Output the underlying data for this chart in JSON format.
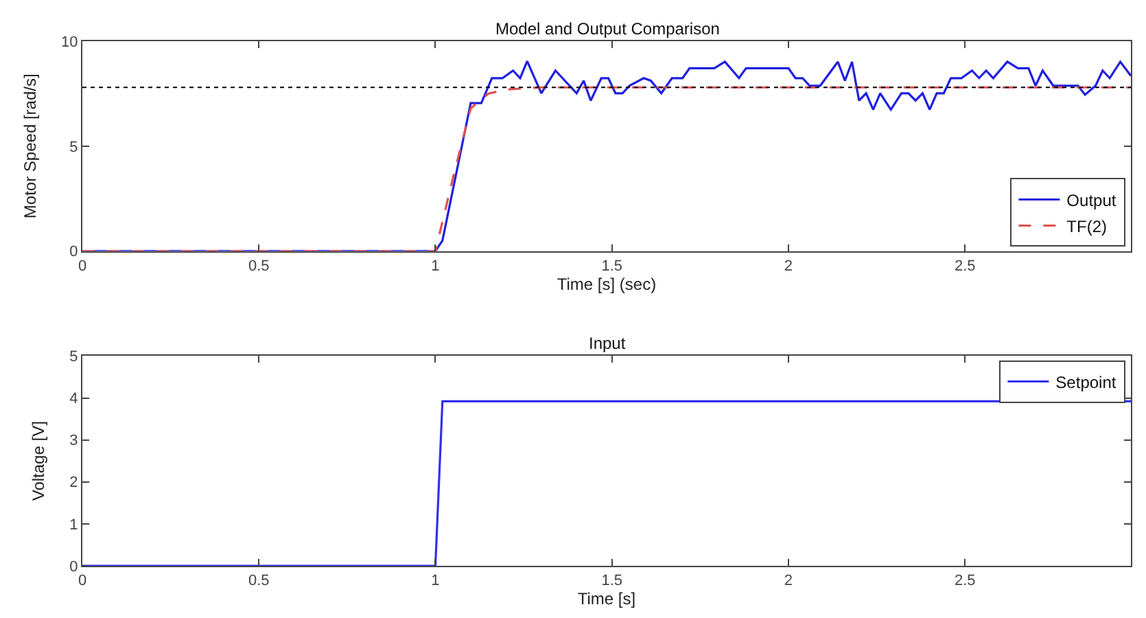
{
  "chart_data": [
    {
      "type": "line",
      "title": "Model and Output Comparison",
      "xlabel": "Time [s] (sec)",
      "ylabel": "Motor Speed [rad/s]",
      "xlim": [
        0,
        2.97
      ],
      "xticks": [
        0,
        0.5,
        1,
        1.5,
        2,
        2.5
      ],
      "ylim": [
        0,
        10
      ],
      "yticks": [
        0,
        5,
        10
      ],
      "legend": "bottom right",
      "ref_lines": [
        {
          "axis": "y",
          "value": 7.8,
          "color": "#000000",
          "line_style": "dotted"
        }
      ],
      "series": [
        {
          "name": "Output",
          "color": "#2020e0",
          "line_style": "solid",
          "x": [
            0,
            1.0,
            1.02,
            1.1,
            1.13,
            1.16,
            1.19,
            1.22,
            1.24,
            1.26,
            1.3,
            1.34,
            1.4,
            1.42,
            1.44,
            1.47,
            1.49,
            1.51,
            1.53,
            1.55,
            1.59,
            1.61,
            1.64,
            1.67,
            1.7,
            1.72,
            1.79,
            1.82,
            1.86,
            1.88,
            2.0,
            2.02,
            2.04,
            2.06,
            2.09,
            2.14,
            2.16,
            2.18,
            2.2,
            2.22,
            2.24,
            2.26,
            2.29,
            2.32,
            2.34,
            2.36,
            2.38,
            2.4,
            2.42,
            2.44,
            2.46,
            2.49,
            2.52,
            2.54,
            2.56,
            2.58,
            2.62,
            2.65,
            2.68,
            2.7,
            2.72,
            2.75,
            2.82,
            2.84,
            2.87,
            2.89,
            2.91,
            2.94,
            2.97
          ],
          "values": [
            0,
            0,
            0.5,
            7.05,
            7.05,
            8.24,
            8.24,
            8.6,
            8.24,
            9.05,
            7.52,
            8.6,
            7.52,
            8.12,
            7.17,
            8.24,
            8.24,
            7.52,
            7.52,
            7.88,
            8.24,
            8.12,
            7.52,
            8.24,
            8.24,
            8.71,
            8.71,
            9.02,
            8.24,
            8.71,
            8.71,
            8.24,
            8.24,
            7.88,
            7.88,
            9.02,
            8.12,
            9.02,
            7.17,
            7.52,
            6.74,
            7.52,
            6.74,
            7.52,
            7.52,
            7.17,
            7.52,
            6.74,
            7.52,
            7.52,
            8.24,
            8.24,
            8.6,
            8.24,
            8.6,
            8.24,
            9.02,
            8.71,
            8.71,
            7.88,
            8.6,
            7.88,
            7.88,
            7.45,
            7.88,
            8.6,
            8.24,
            9.02,
            8.35
          ]
        },
        {
          "name": "TF(2)",
          "color": "#e05050",
          "line_style": "dashed",
          "x": [
            0,
            1.0,
            1.05,
            1.1,
            1.15,
            1.2,
            1.3,
            2.97
          ],
          "values": [
            0,
            0,
            3.5,
            6.8,
            7.5,
            7.7,
            7.8,
            7.8
          ]
        }
      ]
    },
    {
      "type": "line",
      "title": "Input",
      "xlabel": "Time [s]",
      "ylabel": "Voltage [V]",
      "xlim": [
        0,
        2.97
      ],
      "xticks": [
        0,
        0.5,
        1,
        1.5,
        2,
        2.5
      ],
      "ylim": [
        0,
        5
      ],
      "yticks": [
        0,
        1,
        2,
        3,
        4,
        5
      ],
      "legend": "top right",
      "series": [
        {
          "name": "Setpoint",
          "color": "#3030f0",
          "line_style": "solid",
          "x": [
            0,
            1.0,
            1.02,
            2.97
          ],
          "values": [
            0,
            0,
            3.92,
            3.92
          ]
        }
      ]
    }
  ]
}
